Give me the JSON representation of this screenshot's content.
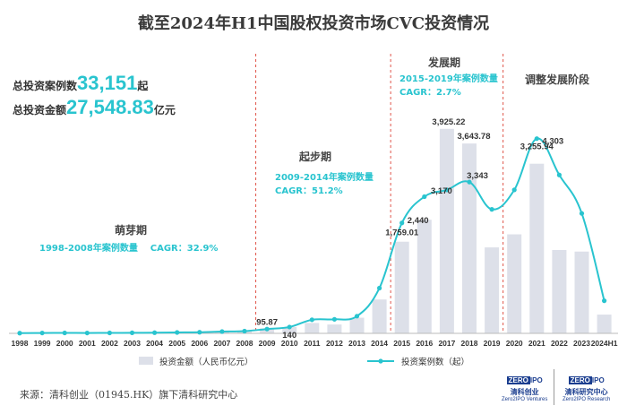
{
  "title": "截至2024年H1中国股权投资市场CVC投资情况",
  "summary": {
    "count_prefix": "总投资案例数",
    "count_value": "33,151",
    "count_suffix": "起",
    "amount_prefix": "总投资金额",
    "amount_value": "27,548.83",
    "amount_suffix": "亿元"
  },
  "phases": {
    "sprout": {
      "name": "萌芽期",
      "cagr_label": "1998-2008年案例数量",
      "cagr_value": "CAGR：32.9%"
    },
    "start": {
      "name": "起步期",
      "cagr_label": "2009-2014年案例数量",
      "cagr_value": "CAGR：51.2%"
    },
    "growth": {
      "name": "发展期",
      "cagr_label": "2015-2019年案例数量",
      "cagr_value": "CAGR：2.7%"
    },
    "adjust": {
      "name": "调整发展阶段"
    }
  },
  "source": "来源：清科创业（01945.HK）旗下清科研究中心",
  "logos": {
    "left_mark": "ZERO",
    "left_mark2": "IPO",
    "left_cn": "清科创业",
    "left_en": "Zero2IPO Ventures",
    "right_mark": "ZERO",
    "right_mark2": "IPO",
    "right_cn": "清科研究中心",
    "right_en": "Zero2IPO Research"
  },
  "colors": {
    "bar": "#dde0e9",
    "line": "#29c4cf",
    "divider": "#e0554a",
    "text": "#333333"
  },
  "chart_data": {
    "type": "bar+line",
    "title": "截至2024年H1中国股权投资市场CVC投资情况",
    "categories": [
      "1998",
      "1999",
      "2000",
      "2001",
      "2002",
      "2003",
      "2004",
      "2005",
      "2006",
      "2007",
      "2008",
      "2009",
      "2010",
      "2011",
      "2012",
      "2013",
      "2014",
      "2015",
      "2016",
      "2017",
      "2018",
      "2019",
      "2020",
      "2021",
      "2022",
      "2023",
      "2024H1"
    ],
    "series": [
      {
        "name": "投资金额（人民币亿元）",
        "type": "bar",
        "axis": "left",
        "values": [
          1,
          2,
          3,
          2,
          3,
          4,
          5,
          30,
          20,
          40,
          50,
          95.87,
          120,
          200,
          170,
          300,
          650,
          1759.01,
          2180,
          3925.22,
          3643.78,
          1650,
          1900,
          3255.94,
          1600,
          1570,
          360
        ]
      },
      {
        "name": "投资案例数（起）",
        "type": "line",
        "axis": "right",
        "values": [
          5,
          8,
          10,
          8,
          10,
          12,
          15,
          20,
          25,
          40,
          50,
          95,
          140,
          300,
          310,
          380,
          1000,
          2440,
          3020,
          3170,
          3343,
          2740,
          3170,
          4303,
          3500,
          2650,
          720
        ]
      }
    ],
    "data_labels": [
      {
        "series": 0,
        "category": "2009",
        "text": "95.87"
      },
      {
        "series": 1,
        "category": "2010",
        "text": "140"
      },
      {
        "series": 0,
        "category": "2015",
        "text": "1,759.01"
      },
      {
        "series": 1,
        "category": "2015",
        "text": "2,440"
      },
      {
        "series": 0,
        "category": "2017",
        "text": "3,925.22"
      },
      {
        "series": 0,
        "category": "2018",
        "text": "3,643.78"
      },
      {
        "series": 1,
        "category": "2017",
        "text": "3,170"
      },
      {
        "series": 1,
        "category": "2018",
        "text": "3,343"
      },
      {
        "series": 0,
        "category": "2021",
        "text": "3,255.94"
      },
      {
        "series": 1,
        "category": "2021",
        "text": "4,303"
      }
    ],
    "ylim_left": [
      0,
      4300
    ],
    "ylim_right": [
      0,
      4950
    ],
    "legend": [
      "投资金额（人民币亿元）",
      "投资案例数（起）"
    ],
    "legend_position": "bottom",
    "phase_boundaries_after": [
      "2008",
      "2014",
      "2019"
    ]
  }
}
